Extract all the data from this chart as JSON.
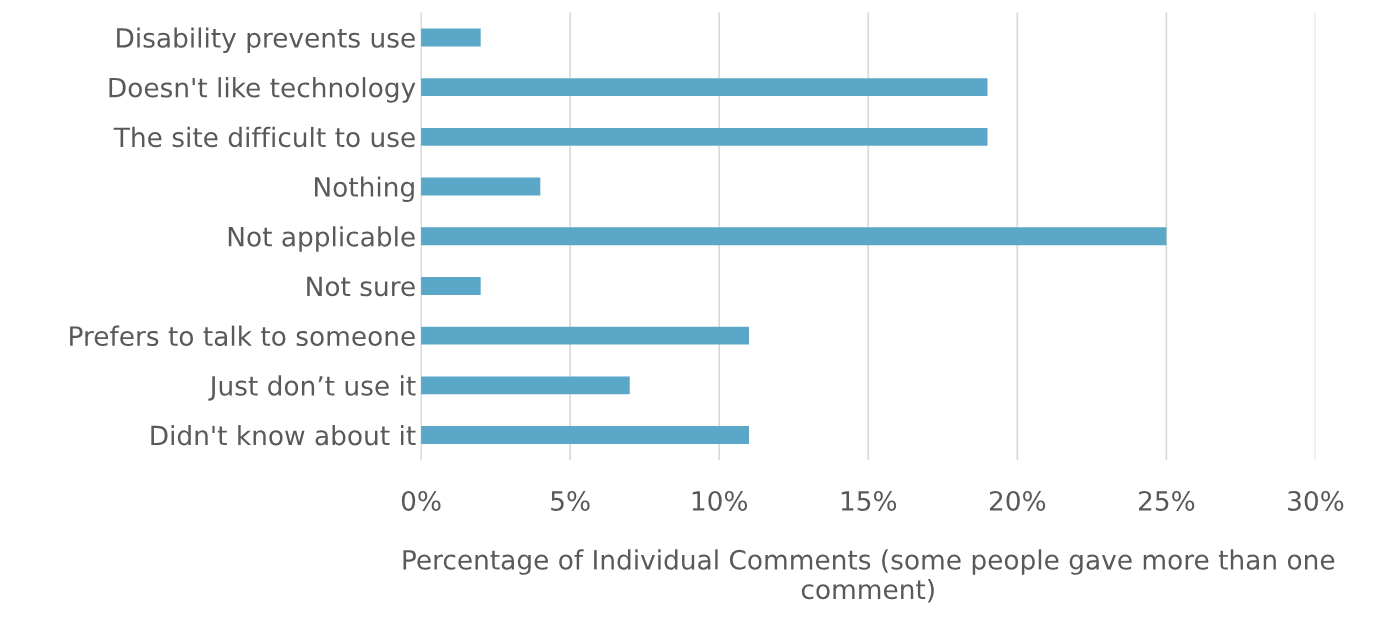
{
  "chart_data": {
    "type": "bar",
    "orientation": "horizontal",
    "categories": [
      "Disability prevents use",
      "Doesn't like technology",
      "The site difficult to use",
      "Nothing",
      "Not applicable",
      "Not sure",
      "Prefers to talk to someone",
      "Just don’t use it",
      "Didn't know about it"
    ],
    "values": [
      2,
      19,
      19,
      4,
      25,
      2,
      11,
      7,
      11
    ],
    "color": "#5ba7c7",
    "xlabel": "Percentage of Individual Comments (some people gave more than one comment)",
    "xlim": [
      0,
      30
    ],
    "xticks": [
      {
        "value": 0,
        "label": "0%"
      },
      {
        "value": 5,
        "label": "5%"
      },
      {
        "value": 10,
        "label": "10%"
      },
      {
        "value": 15,
        "label": "15%"
      },
      {
        "value": 20,
        "label": "20%"
      },
      {
        "value": 25,
        "label": "25%"
      },
      {
        "value": 30,
        "label": "30%"
      }
    ],
    "grid": "x"
  }
}
